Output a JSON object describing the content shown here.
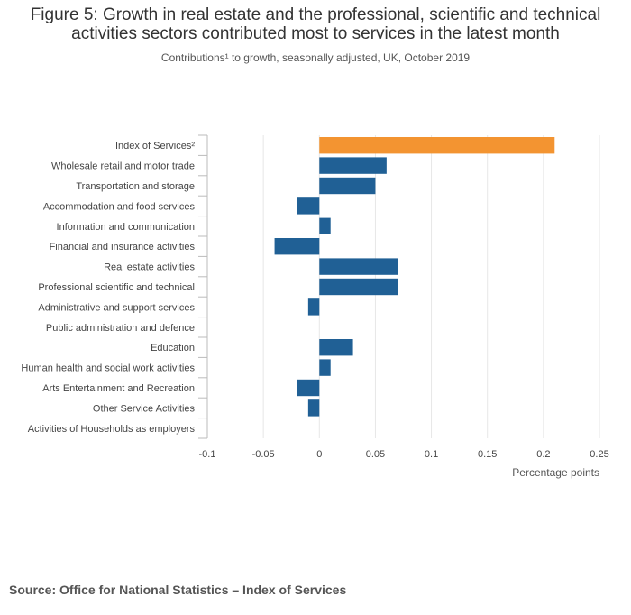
{
  "title": "Figure 5: Growth in real estate and the professional, scientific and technical activities sectors contributed most to services in the latest month",
  "subtitle": "Contributions¹ to growth, seasonally adjusted, UK, October 2019",
  "source": "Source: Office for National Statistics – Index of Services",
  "colors": {
    "highlight": "#f39431",
    "default": "#206095",
    "grid": "#e6e6e6",
    "axis": "#bbbbbb"
  },
  "chart_data": {
    "type": "bar",
    "orientation": "horizontal",
    "categories": [
      "Index of Services²",
      "Wholesale retail and motor trade",
      "Transportation and storage",
      "Accommodation and food services",
      "Information and communication",
      "Financial and insurance activities",
      "Real estate activities",
      "Professional scientific and technical",
      "Administrative and support services",
      "Public administration and defence",
      "Education",
      "Human health and social work activities",
      "Arts Entertainment and Recreation",
      "Other Service Activities",
      "Activities of Households as employers"
    ],
    "values": [
      0.21,
      0.06,
      0.05,
      -0.02,
      0.01,
      -0.04,
      0.07,
      0.07,
      -0.01,
      0.0,
      0.03,
      0.01,
      -0.02,
      -0.01,
      0.0
    ],
    "highlight_index": 0,
    "xlim": [
      -0.1,
      0.25
    ],
    "xticks": [
      -0.1,
      -0.05,
      0,
      0.05,
      0.1,
      0.15,
      0.2,
      0.25
    ],
    "xtick_labels": [
      "-0.1",
      "-0.05",
      "0",
      "0.05",
      "0.1",
      "0.15",
      "0.2",
      "0.25"
    ],
    "xlabel": "Percentage points",
    "ylabel": "",
    "grid": true,
    "legend": "none"
  }
}
